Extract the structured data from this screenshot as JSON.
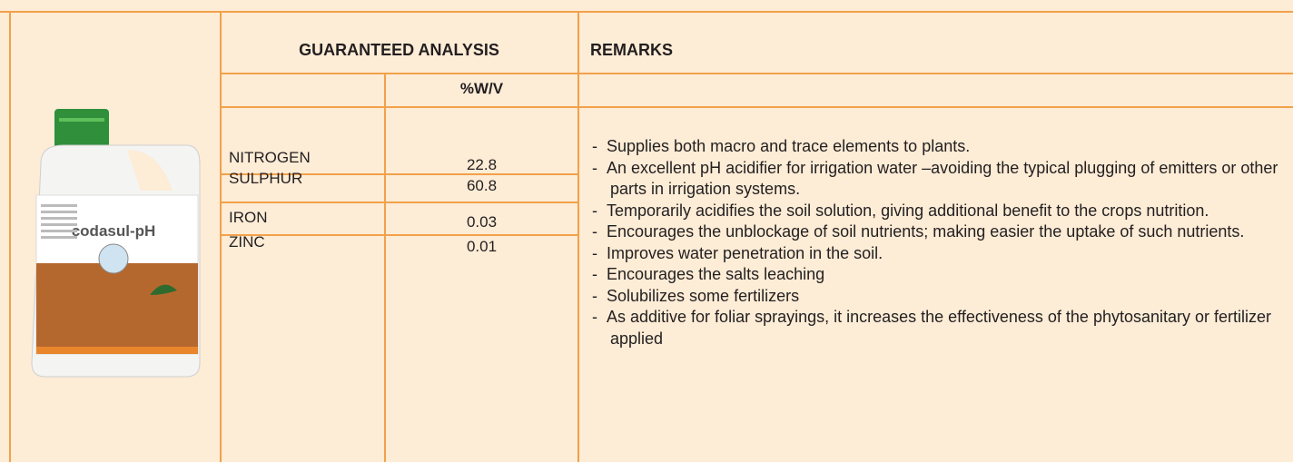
{
  "product": {
    "label": "codasul-pH"
  },
  "table": {
    "title": "GUARANTEED ANALYSIS",
    "unit": "%W/V",
    "rows": [
      [
        "NITROGEN",
        "22.8"
      ],
      [
        "SULPHUR",
        "60.8"
      ],
      [
        "IRON",
        "0.03"
      ],
      [
        "ZINC",
        "0.01"
      ]
    ]
  },
  "remarks": {
    "title": "REMARKS",
    "items": [
      "Supplies both macro and trace elements to plants.",
      "An excellent pH acidifier for irrigation water –avoiding the typical plugging of emitters or other parts in irrigation systems.",
      "Temporarily acidifies the soil solution, giving additional benefit to the crops nutrition.",
      "Encourages the unblockage of soil nutrients; making easier the uptake of such nutrients.",
      "Improves water penetration in the soil.",
      "Encourages the salts leaching",
      "Solubilizes some fertilizers",
      "As additive for foliar sprayings, it increases the effectiveness of the phytosanitary or fertilizer applied"
    ]
  }
}
